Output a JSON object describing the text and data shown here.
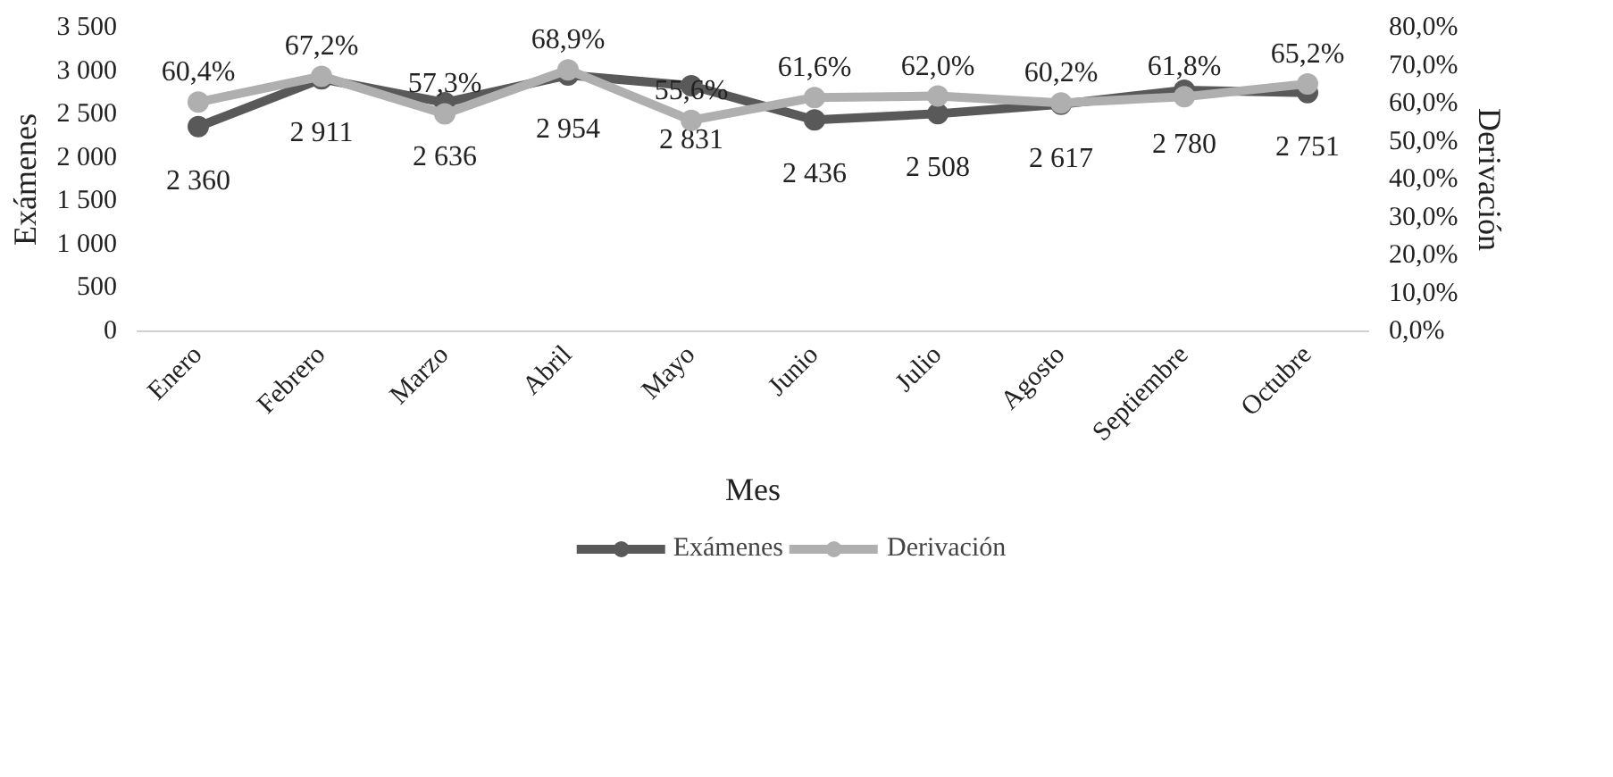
{
  "chart_data": {
    "type": "line",
    "xlabel": "Mes",
    "ylabel": "Exámenes",
    "y2label": "Derivación",
    "categories": [
      "Enero",
      "Febrero",
      "Marzo",
      "Abril",
      "Mayo",
      "Junio",
      "Julio",
      "Agosto",
      "Septiembre",
      "Octubre"
    ],
    "series": [
      {
        "name": "Exámenes",
        "color": "#595959",
        "values": [
          2360,
          2911,
          2636,
          2954,
          2831,
          2436,
          2508,
          2617,
          2780,
          2751
        ],
        "value_labels": [
          "2 360",
          "2 911",
          "2 636",
          "2 954",
          "2 831",
          "2 436",
          "2 508",
          "2 617",
          "2 780",
          "2 751"
        ]
      },
      {
        "name": "Derivación",
        "color": "#afafaf",
        "axis": "y2",
        "values": [
          60.4,
          67.2,
          57.3,
          68.9,
          55.6,
          61.6,
          62.0,
          60.2,
          61.8,
          65.2
        ],
        "value_labels": [
          "60,4%",
          "67,2%",
          "57,3%",
          "68,9%",
          "55,6%",
          "61,6%",
          "62,0%",
          "60,2%",
          "61,8%",
          "65,2%"
        ]
      }
    ],
    "ylim": [
      0,
      3500
    ],
    "yticks": [
      0,
      500,
      {
        "value": 1000,
        "label": "1 000"
      },
      {
        "value": 1500,
        "label": "1 500"
      },
      {
        "value": 2000,
        "label": "2 000"
      },
      {
        "value": 2500,
        "label": "2 500"
      },
      {
        "value": 3000,
        "label": "3 000"
      },
      {
        "value": 3500,
        "label": "3 500"
      }
    ],
    "y2lim": [
      0,
      80
    ],
    "y2ticks": [
      {
        "value": 0,
        "label": "0,0%"
      },
      {
        "value": 10,
        "label": "10,0%"
      },
      {
        "value": 20,
        "label": "20,0%"
      },
      {
        "value": 30,
        "label": "30,0%"
      },
      {
        "value": 40,
        "label": "40,0%"
      },
      {
        "value": 50,
        "label": "50,0%"
      },
      {
        "value": 60,
        "label": "60,0%"
      },
      {
        "value": 70,
        "label": "70,0%"
      },
      {
        "value": 80,
        "label": "80,0%"
      }
    ],
    "marker": "circle",
    "line_style": "solid",
    "grid": false,
    "legend": "bottom"
  }
}
